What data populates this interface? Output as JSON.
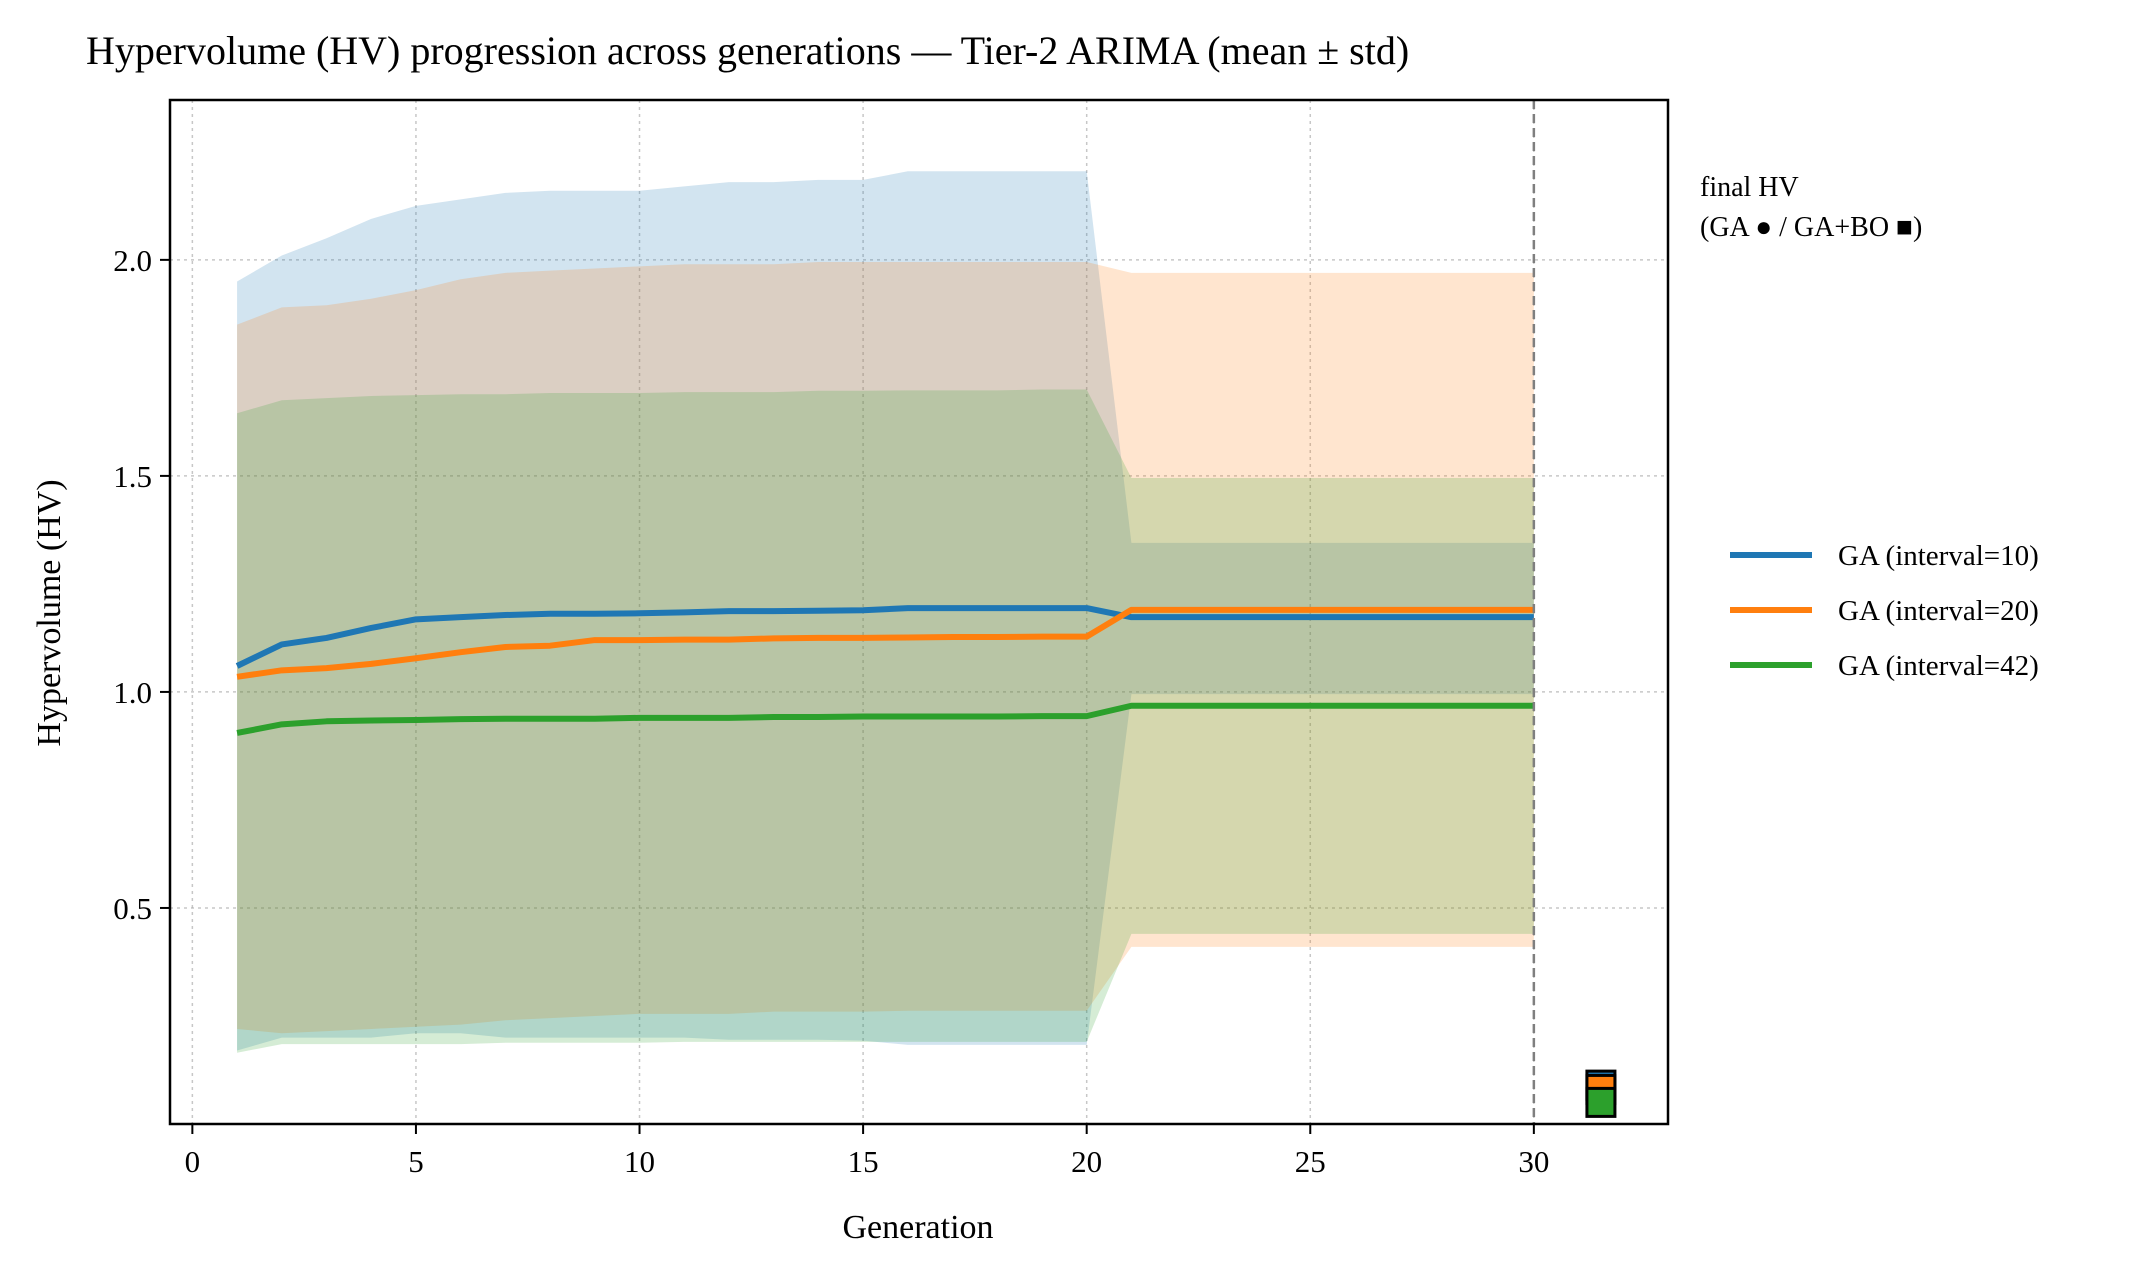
{
  "chart_data": {
    "type": "line",
    "title": "Hypervolume (HV) progression across generations — Tier-2 ARIMA (mean ± std)",
    "xlabel": "Generation",
    "ylabel": "Hypervolume (HV)",
    "xlim": [
      -0.5,
      33
    ],
    "ylim": [
      0.0,
      2.37
    ],
    "xticks": [
      0,
      5,
      10,
      15,
      20,
      25,
      30
    ],
    "yticks": [
      0.5,
      1.0,
      1.5,
      2.0
    ],
    "ytick_labels": [
      "0.5",
      "1.0",
      "1.5",
      "2.0"
    ],
    "grid": true,
    "vline_x": 30,
    "legend_position": "right",
    "annotation": "final HV\n(GA ● / GA+BO ■)",
    "series": [
      {
        "name": "GA (interval=10)",
        "color": "#1f77b4",
        "band_opacity": 0.2,
        "x": [
          1,
          2,
          3,
          4,
          5,
          6,
          7,
          8,
          9,
          10,
          11,
          12,
          13,
          14,
          15,
          16,
          17,
          18,
          19,
          20,
          21,
          22,
          23,
          24,
          25,
          26,
          27,
          28,
          29,
          30
        ],
        "mean": [
          1.06,
          1.11,
          1.125,
          1.148,
          1.168,
          1.173,
          1.178,
          1.181,
          1.181,
          1.182,
          1.184,
          1.187,
          1.187,
          1.188,
          1.189,
          1.194,
          1.194,
          1.194,
          1.194,
          1.194,
          1.173,
          1.173,
          1.173,
          1.173,
          1.173,
          1.173,
          1.173,
          1.173,
          1.173,
          1.173
        ],
        "upper": [
          1.95,
          2.01,
          2.05,
          2.095,
          2.125,
          2.14,
          2.155,
          2.16,
          2.16,
          2.16,
          2.17,
          2.18,
          2.18,
          2.185,
          2.185,
          2.205,
          2.205,
          2.205,
          2.205,
          2.205,
          1.345,
          1.345,
          1.345,
          1.345,
          1.345,
          1.345,
          1.345,
          1.345,
          1.345,
          1.345
        ],
        "lower": [
          0.17,
          0.2,
          0.2,
          0.2,
          0.21,
          0.21,
          0.2,
          0.2,
          0.2,
          0.2,
          0.2,
          0.195,
          0.195,
          0.195,
          0.193,
          0.183,
          0.183,
          0.183,
          0.183,
          0.183,
          0.995,
          0.995,
          0.995,
          0.995,
          0.995,
          0.995,
          0.995,
          0.995,
          0.995,
          0.995
        ]
      },
      {
        "name": "GA (interval=20)",
        "color": "#ff7f0e",
        "band_opacity": 0.2,
        "x": [
          1,
          2,
          3,
          4,
          5,
          6,
          7,
          8,
          9,
          10,
          11,
          12,
          13,
          14,
          15,
          16,
          17,
          18,
          19,
          20,
          21,
          22,
          23,
          24,
          25,
          26,
          27,
          28,
          29,
          30
        ],
        "mean": [
          1.035,
          1.05,
          1.055,
          1.065,
          1.078,
          1.092,
          1.104,
          1.107,
          1.12,
          1.12,
          1.121,
          1.121,
          1.124,
          1.125,
          1.125,
          1.126,
          1.127,
          1.127,
          1.128,
          1.128,
          1.19,
          1.19,
          1.19,
          1.19,
          1.19,
          1.19,
          1.19,
          1.19,
          1.19,
          1.19
        ],
        "upper": [
          1.85,
          1.89,
          1.895,
          1.91,
          1.93,
          1.955,
          1.97,
          1.975,
          1.98,
          1.985,
          1.99,
          1.99,
          1.99,
          1.995,
          1.995,
          1.995,
          1.995,
          1.995,
          1.995,
          1.995,
          1.97,
          1.97,
          1.97,
          1.97,
          1.97,
          1.97,
          1.97,
          1.97,
          1.97,
          1.97
        ],
        "lower": [
          0.22,
          0.21,
          0.215,
          0.22,
          0.225,
          0.23,
          0.24,
          0.245,
          0.25,
          0.255,
          0.255,
          0.255,
          0.26,
          0.26,
          0.26,
          0.262,
          0.262,
          0.262,
          0.262,
          0.262,
          0.41,
          0.41,
          0.41,
          0.41,
          0.41,
          0.41,
          0.41,
          0.41,
          0.41,
          0.41
        ]
      },
      {
        "name": "GA (interval=42)",
        "color": "#2ca02c",
        "band_opacity": 0.2,
        "x": [
          1,
          2,
          3,
          4,
          5,
          6,
          7,
          8,
          9,
          10,
          11,
          12,
          13,
          14,
          15,
          16,
          17,
          18,
          19,
          20,
          21,
          22,
          23,
          24,
          25,
          26,
          27,
          28,
          29,
          30
        ],
        "mean": [
          0.905,
          0.925,
          0.932,
          0.934,
          0.935,
          0.937,
          0.938,
          0.938,
          0.938,
          0.94,
          0.94,
          0.94,
          0.942,
          0.942,
          0.943,
          0.943,
          0.943,
          0.943,
          0.944,
          0.944,
          0.968,
          0.968,
          0.968,
          0.968,
          0.968,
          0.968,
          0.968,
          0.968,
          0.968,
          0.968
        ],
        "upper": [
          1.645,
          1.675,
          1.68,
          1.685,
          1.687,
          1.689,
          1.689,
          1.692,
          1.692,
          1.692,
          1.694,
          1.694,
          1.694,
          1.697,
          1.697,
          1.698,
          1.698,
          1.698,
          1.7,
          1.7,
          1.495,
          1.495,
          1.495,
          1.495,
          1.495,
          1.495,
          1.495,
          1.495,
          1.495,
          1.495
        ],
        "lower": [
          0.165,
          0.185,
          0.185,
          0.185,
          0.185,
          0.185,
          0.188,
          0.188,
          0.188,
          0.188,
          0.19,
          0.19,
          0.19,
          0.19,
          0.19,
          0.19,
          0.19,
          0.19,
          0.19,
          0.19,
          0.44,
          0.44,
          0.44,
          0.44,
          0.44,
          0.44,
          0.44,
          0.44,
          0.44,
          0.44
        ]
      }
    ],
    "final_markers": [
      {
        "series": "GA (interval=10)",
        "color": "#1f77b4",
        "x": 31.5,
        "value": 0.09
      },
      {
        "series": "GA (interval=20)",
        "color": "#ff7f0e",
        "x": 31.5,
        "value": 0.08
      },
      {
        "series": "GA (interval=42)",
        "color": "#2ca02c",
        "x": 31.5,
        "value": 0.05
      }
    ]
  }
}
